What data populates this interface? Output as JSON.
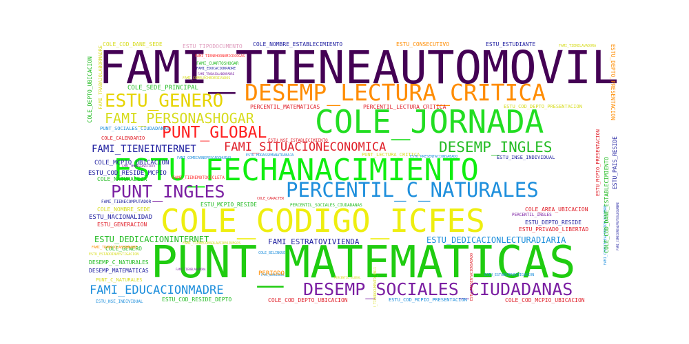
{
  "words": [
    {
      "text": "FAMI_TIENEAUTOMOVIL",
      "color": "#440154"
    },
    {
      "text": "PUNT_MATEMATICAS",
      "color": "#1fcc10"
    },
    {
      "text": "ESTU_FECHANACIMIENTO",
      "color": "#10ee10"
    },
    {
      "text": "COLE_CODIGO_ICFES",
      "color": "#eeee10"
    },
    {
      "text": "COLE_JORNADA",
      "color": "#22dd22"
    },
    {
      "text": "DESEMP_LECTURA_CRITICA",
      "color": "#ff8c00"
    },
    {
      "text": "PERCENTIL_C_NATURALES",
      "color": "#1e8fdc"
    },
    {
      "text": "DESEMP_SOCIALES_CIUDADANAS",
      "color": "#7b1fa2"
    },
    {
      "text": "ESTU_GENERO",
      "color": "#e6d400"
    },
    {
      "text": "FAMI_PERSONASHOGAR",
      "color": "#d7dc1e"
    },
    {
      "text": "PUNT_GLOBAL",
      "color": "#ff2020"
    },
    {
      "text": "PUNT_INGLES",
      "color": "#7b1fa2"
    },
    {
      "text": "DESEMP_INGLES",
      "color": "#22bb22"
    },
    {
      "text": "FAMI_SITUACIONECONOMICA",
      "color": "#e0202a"
    },
    {
      "text": "FAMI_TIENEINTERNET",
      "color": "#1f1f9f"
    },
    {
      "text": "FAMI_EDUCACIONMADRE",
      "color": "#1e8fdc"
    },
    {
      "text": "ESTU_DEDICACIONINTERNET",
      "color": "#22bb22"
    },
    {
      "text": "ESTU_DEDICACIONLECTURADIARIA",
      "color": "#1e8fdc"
    },
    {
      "text": "FAMI_ESTRATOVIVIENDA",
      "color": "#1f1f9f"
    },
    {
      "text": "COLE_SEDE_PRINCIPAL",
      "color": "#22bb22"
    },
    {
      "text": "COLE_NOMBRE_ESTABLECIMIENTO",
      "color": "#1f1f9f"
    },
    {
      "text": "ESTU_CONSECUTIVO",
      "color": "#ff8c00"
    },
    {
      "text": "ESTU_ESTUDIANTE",
      "color": "#1f1f9f"
    },
    {
      "text": "COLE_COD_DANE_SEDE",
      "color": "#d7dc1e"
    },
    {
      "text": "ESTU_TIPODOCUMENTO",
      "color": "#e0a0c0"
    },
    {
      "text": "FAMI_CUARTOSHOGAR",
      "color": "#22bb22"
    },
    {
      "text": "FAMI_EDUCACIONPADRE",
      "color": "#1f1f9f"
    },
    {
      "text": "FAMI_TIENEHORNOMICROOGAS",
      "color": "#ff3030"
    },
    {
      "text": "FAMI_TIENELAVADORA",
      "color": "#d7dc1e"
    },
    {
      "text": "FAMI_TIENESERVICIOTV",
      "color": "#7b1fa2"
    },
    {
      "text": "FAMI_TIENECOMPUTADOR",
      "color": "#1f1f9f"
    },
    {
      "text": "FAMI_TIENEMOTOCICLETA",
      "color": "#ff3030"
    },
    {
      "text": "FAMI_TIENECONSOLAVIDEOJUEGOS",
      "color": "#d7dc1e"
    },
    {
      "text": "FAMI_NUMLIBROS",
      "color": "#1e8fdc"
    },
    {
      "text": "FAMI_TRABAJOLABORMADRE",
      "color": "#d7dc1e"
    },
    {
      "text": "FAMI_TRABAJOLABORPADRE",
      "color": "#7b1fa2"
    },
    {
      "text": "FAMI_COMECARNEPESCADOHUEVO",
      "color": "#1e8fdc"
    },
    {
      "text": "FAMI_COMELECHEDERIVADOS",
      "color": "#d7dc1e"
    },
    {
      "text": "FAMI_COMECEREALFRUTOSLEGUMBRE",
      "color": "#1e8fdc"
    },
    {
      "text": "PERCENTIL_MATEMATICAS",
      "color": "#e0202a"
    },
    {
      "text": "PERCENTIL_LECTURA_CRITICA",
      "color": "#e0202a"
    },
    {
      "text": "PERCENTIL_INGLES",
      "color": "#7b1fa2"
    },
    {
      "text": "PERCENTIL_SOCIALES_CIUDADANAS",
      "color": "#22bb22"
    },
    {
      "text": "PERCENTIL_GLOBAL",
      "color": "#d7dc1e"
    },
    {
      "text": "ESTU_COD_DEPTO_PRESENTACION",
      "color": "#d7dc1e"
    },
    {
      "text": "PUNT_SOCIALES_CIUDADANAS",
      "color": "#1e8fdc"
    },
    {
      "text": "COLE_CALENDARIO",
      "color": "#e0202a"
    },
    {
      "text": "ESTU_NSE_ESTABLECIMIENTO",
      "color": "#e0202a"
    },
    {
      "text": "PUNT_LECTURA_CRITICA",
      "color": "#d7dc1e"
    },
    {
      "text": "COLE_MCPIO_UBICACION",
      "color": "#1f1f9f"
    },
    {
      "text": "ESTU_COD_RESIDE_MCPIO",
      "color": "#1f1f9f"
    },
    {
      "text": "COLE_NATURALEZA",
      "color": "#22bb22"
    },
    {
      "text": "ESTU_HORASSEMANATRABAJA",
      "color": "#1e8fdc"
    },
    {
      "text": "ESTU_PRESENTACIONSABADO",
      "color": "#1e8fdc"
    },
    {
      "text": "ESTU_INSE_INDIVIDUAL",
      "color": "#1f1f9f"
    },
    {
      "text": "COLE_CARACTER",
      "color": "#e0202a"
    },
    {
      "text": "ESTU_MCPIO_RESIDE",
      "color": "#22bb22"
    },
    {
      "text": "COLE_NOMBRE_SEDE",
      "color": "#d7dc1e"
    },
    {
      "text": "ESTU_NACIONALIDAD",
      "color": "#1f1f9f"
    },
    {
      "text": "ESTU_GENERACION",
      "color": "#e0202a"
    },
    {
      "text": "COLE_GENERO",
      "color": "#22bb22"
    },
    {
      "text": "DESEMP_C_NATURALES",
      "color": "#22bb22"
    },
    {
      "text": "DESEMP_MATEMATICAS",
      "color": "#1f1f9f"
    },
    {
      "text": "PUNT_C_NATURALES",
      "color": "#d7dc1e"
    },
    {
      "text": "ESTU_ESTADOINVESTIGACION",
      "color": "#d7dc1e"
    },
    {
      "text": "COLE_BILINGUE",
      "color": "#1e8fdc"
    },
    {
      "text": "PERIODO",
      "color": "#ff8c00"
    },
    {
      "text": "COLE_AREA_UBICACION",
      "color": "#e0202a"
    },
    {
      "text": "ESTU_DEPTO_RESIDE",
      "color": "#1f1f9f"
    },
    {
      "text": "ESTU_PRIVADO_LIBERTAD",
      "color": "#e0202a"
    },
    {
      "text": "ESTU_NSE_INDIVIDUAL",
      "color": "#1e8fdc"
    },
    {
      "text": "ESTU_COD_RESIDE_DEPTO",
      "color": "#22bb22"
    },
    {
      "text": "COLE_COD_DEPTO_UBICACION",
      "color": "#e0202a"
    },
    {
      "text": "ESTU_COD_MCPIO_PRESENTACION",
      "color": "#1e8fdc"
    },
    {
      "text": "COLE_COD_MCPIO_UBICACION",
      "color": "#e0202a"
    },
    {
      "text": "ESTU_TIPODOCUMENTO_SB11",
      "color": "#d7dc1e"
    },
    {
      "text": "COLE_DEPTO_UBICACION",
      "color": "#22bb22"
    },
    {
      "text": "ESTU_DEPTO_PRESENTACION",
      "color": "#ff8c00"
    },
    {
      "text": "ESTU_MCPIO_PRESENTACION",
      "color": "#e0202a"
    },
    {
      "text": "COLE_COD_DANE_ESTABLECIMIENTO",
      "color": "#22bb22"
    },
    {
      "text": "ESTU_PAIS_RESIDE",
      "color": "#1f1f9f"
    },
    {
      "text": "FAMI_COMECEREALFRUTOSLEGUMBRE",
      "color": "#1f1f9f"
    },
    {
      "text": "ESTU_PRESENTACIONSABADO",
      "color": "#e0202a"
    },
    {
      "text": "FAMI_TRABAJOLABORMADRE",
      "color": "#ff8c00"
    },
    {
      "text": "ESTU_ESTADOINVESTIGACION",
      "color": "#1e8fdc"
    },
    {
      "text": "FAMI_TIENELAVADORA",
      "color": "#7b1fa2"
    }
  ]
}
